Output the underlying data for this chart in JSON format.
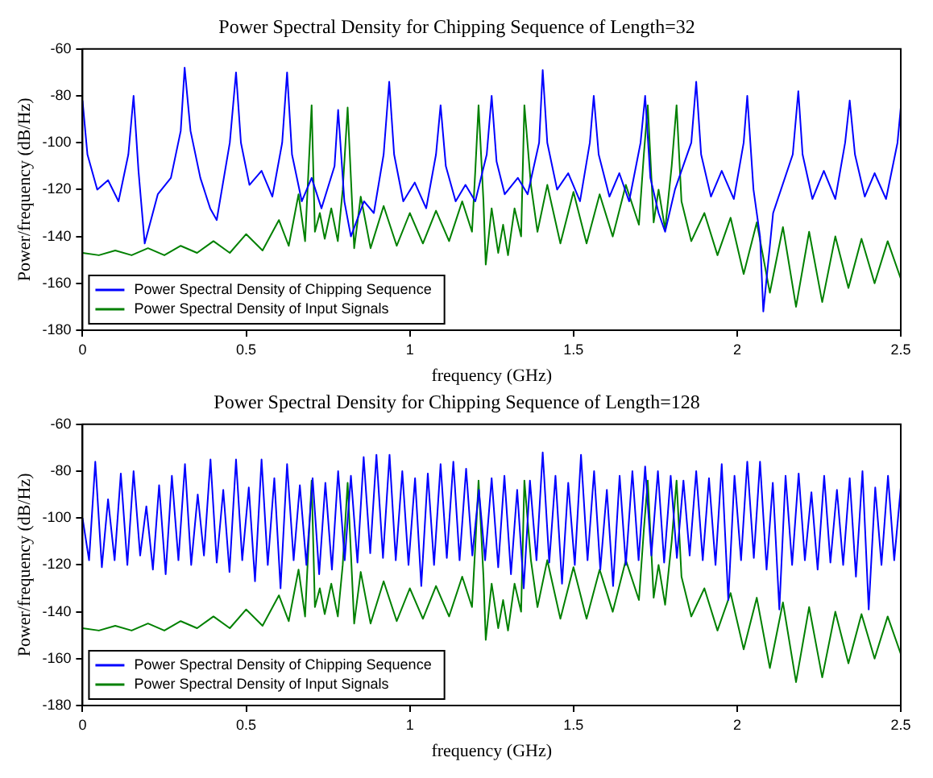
{
  "chart_data": [
    {
      "type": "line",
      "title": "Power Spectral Density for Chipping Sequence of Length=32",
      "xlabel": "frequency (GHz)",
      "ylabel": "Power/frequency (dB/Hz)",
      "xlim": [
        0,
        2.5
      ],
      "xticks": [
        0,
        0.5,
        1,
        1.5,
        2,
        2.5
      ],
      "ylim": [
        -180,
        -60
      ],
      "yticks": [
        -180,
        -160,
        -140,
        -120,
        -100,
        -80,
        -60
      ],
      "grid": false,
      "legend": "bottom left",
      "marker": "none",
      "line_style": "solid",
      "series": [
        {
          "name": "Power Spectral Density of Chipping Sequence",
          "color": "#0000ff",
          "x": [
            0,
            0.015,
            0.045,
            0.078,
            0.11,
            0.14,
            0.156,
            0.171,
            0.19,
            0.23,
            0.27,
            0.3,
            0.312,
            0.33,
            0.36,
            0.39,
            0.41,
            0.45,
            0.469,
            0.484,
            0.51,
            0.547,
            0.58,
            0.61,
            0.625,
            0.64,
            0.67,
            0.7,
            0.73,
            0.77,
            0.781,
            0.8,
            0.82,
            0.86,
            0.89,
            0.92,
            0.937,
            0.952,
            0.98,
            1.015,
            1.05,
            1.08,
            1.094,
            1.11,
            1.14,
            1.17,
            1.2,
            1.235,
            1.25,
            1.265,
            1.29,
            1.33,
            1.36,
            1.395,
            1.406,
            1.42,
            1.45,
            1.484,
            1.52,
            1.55,
            1.562,
            1.577,
            1.61,
            1.64,
            1.67,
            1.705,
            1.719,
            1.735,
            1.76,
            1.78,
            1.81,
            1.86,
            1.875,
            1.89,
            1.92,
            1.953,
            1.99,
            2.02,
            2.031,
            2.05,
            2.07,
            2.08,
            2.11,
            2.17,
            2.187,
            2.2,
            2.23,
            2.265,
            2.3,
            2.33,
            2.344,
            2.36,
            2.39,
            2.42,
            2.455,
            2.49,
            2.5
          ],
          "values": [
            -82,
            -105,
            -120,
            -116,
            -125,
            -105,
            -80,
            -112,
            -143,
            -122,
            -115,
            -95,
            -68,
            -95,
            -115,
            -128,
            -133,
            -100,
            -70,
            -100,
            -118,
            -112,
            -123,
            -100,
            -70,
            -105,
            -125,
            -115,
            -128,
            -110,
            -86,
            -125,
            -140,
            -125,
            -130,
            -105,
            -74,
            -105,
            -125,
            -117,
            -128,
            -105,
            -84,
            -110,
            -125,
            -118,
            -125,
            -105,
            -80,
            -108,
            -122,
            -115,
            -122,
            -100,
            -69,
            -100,
            -120,
            -113,
            -125,
            -100,
            -80,
            -105,
            -123,
            -113,
            -125,
            -100,
            -80,
            -115,
            -130,
            -138,
            -120,
            -100,
            -74,
            -105,
            -123,
            -112,
            -124,
            -100,
            -80,
            -120,
            -140,
            -172,
            -130,
            -105,
            -78,
            -105,
            -124,
            -112,
            -124,
            -100,
            -82,
            -105,
            -123,
            -113,
            -124,
            -100,
            -85
          ]
        },
        {
          "name": "Power Spectral Density of Input Signals",
          "color": "#008000",
          "x": [
            0,
            0.05,
            0.1,
            0.15,
            0.2,
            0.25,
            0.3,
            0.35,
            0.4,
            0.45,
            0.5,
            0.55,
            0.6,
            0.63,
            0.66,
            0.68,
            0.7,
            0.71,
            0.725,
            0.74,
            0.76,
            0.78,
            0.795,
            0.81,
            0.83,
            0.85,
            0.88,
            0.92,
            0.96,
            1,
            1.04,
            1.08,
            1.12,
            1.16,
            1.19,
            1.2,
            1.21,
            1.225,
            1.232,
            1.25,
            1.27,
            1.285,
            1.3,
            1.32,
            1.34,
            1.35,
            1.37,
            1.39,
            1.42,
            1.46,
            1.5,
            1.54,
            1.58,
            1.62,
            1.66,
            1.7,
            1.715,
            1.727,
            1.745,
            1.76,
            1.78,
            1.8,
            1.815,
            1.83,
            1.86,
            1.9,
            1.94,
            1.98,
            2.02,
            2.06,
            2.1,
            2.14,
            2.18,
            2.22,
            2.26,
            2.3,
            2.34,
            2.38,
            2.42,
            2.46,
            2.5
          ],
          "values": [
            -147,
            -148,
            -146,
            -148,
            -145,
            -148,
            -144,
            -147,
            -142,
            -147,
            -139,
            -146,
            -133,
            -144,
            -122,
            -142,
            -84,
            -138,
            -130,
            -141,
            -128,
            -142,
            -120,
            -85,
            -145,
            -123,
            -145,
            -127,
            -144,
            -130,
            -143,
            -129,
            -142,
            -125,
            -138,
            -112,
            -84,
            -125,
            -152,
            -128,
            -147,
            -135,
            -148,
            -128,
            -140,
            -84,
            -118,
            -138,
            -118,
            -143,
            -121,
            -143,
            -122,
            -140,
            -118,
            -135,
            -105,
            -84,
            -134,
            -120,
            -137,
            -110,
            -84,
            -125,
            -142,
            -130,
            -148,
            -132,
            -156,
            -134,
            -164,
            -136,
            -170,
            -138,
            -168,
            -140,
            -162,
            -141,
            -160,
            -142,
            -158
          ]
        }
      ]
    },
    {
      "type": "line",
      "title": "Power Spectral Density for Chipping Sequence of Length=128",
      "xlabel": "frequency (GHz)",
      "ylabel": "Power/frequency (dB/Hz)",
      "xlim": [
        0,
        2.5
      ],
      "xticks": [
        0,
        0.5,
        1,
        1.5,
        2,
        2.5
      ],
      "ylim": [
        -180,
        -60
      ],
      "yticks": [
        -180,
        -160,
        -140,
        -120,
        -100,
        -80,
        -60
      ],
      "grid": false,
      "legend": "bottom left",
      "marker": "none",
      "line_style": "solid",
      "series": [
        {
          "name": "Power Spectral Density of Chipping Sequence",
          "color": "#0000ff",
          "x": [
            0,
            0.02,
            0.039,
            0.059,
            0.078,
            0.098,
            0.117,
            0.137,
            0.156,
            0.176,
            0.195,
            0.215,
            0.234,
            0.254,
            0.273,
            0.293,
            0.313,
            0.332,
            0.352,
            0.371,
            0.391,
            0.41,
            0.43,
            0.449,
            0.469,
            0.488,
            0.508,
            0.527,
            0.547,
            0.566,
            0.586,
            0.605,
            0.625,
            0.645,
            0.664,
            0.684,
            0.703,
            0.723,
            0.742,
            0.762,
            0.781,
            0.801,
            0.82,
            0.84,
            0.859,
            0.879,
            0.898,
            0.918,
            0.938,
            0.957,
            0.977,
            0.996,
            1.016,
            1.035,
            1.055,
            1.074,
            1.094,
            1.113,
            1.133,
            1.152,
            1.172,
            1.191,
            1.211,
            1.23,
            1.25,
            1.27,
            1.289,
            1.309,
            1.328,
            1.348,
            1.367,
            1.387,
            1.406,
            1.426,
            1.445,
            1.465,
            1.484,
            1.504,
            1.523,
            1.543,
            1.563,
            1.582,
            1.602,
            1.621,
            1.641,
            1.66,
            1.68,
            1.699,
            1.719,
            1.738,
            1.758,
            1.777,
            1.797,
            1.816,
            1.836,
            1.855,
            1.875,
            1.895,
            1.914,
            1.934,
            1.953,
            1.973,
            1.992,
            2.012,
            2.031,
            2.051,
            2.07,
            2.09,
            2.109,
            2.129,
            2.148,
            2.168,
            2.188,
            2.207,
            2.227,
            2.246,
            2.266,
            2.285,
            2.305,
            2.324,
            2.344,
            2.363,
            2.383,
            2.402,
            2.422,
            2.441,
            2.461,
            2.48,
            2.5
          ],
          "values": [
            -100,
            -118,
            -76,
            -121,
            -92,
            -118,
            -81,
            -120,
            -80,
            -116,
            -95,
            -122,
            -86,
            -124,
            -82,
            -118,
            -77,
            -120,
            -90,
            -116,
            -75,
            -119,
            -88,
            -123,
            -75,
            -118,
            -87,
            -127,
            -75,
            -120,
            -83,
            -130,
            -77,
            -118,
            -86,
            -120,
            -83,
            -124,
            -85,
            -122,
            -80,
            -118,
            -82,
            -119,
            -74,
            -115,
            -73,
            -117,
            -73,
            -118,
            -80,
            -120,
            -83,
            -129,
            -81,
            -120,
            -77,
            -117,
            -76,
            -118,
            -79,
            -116,
            -88,
            -118,
            -83,
            -121,
            -82,
            -124,
            -88,
            -130,
            -84,
            -118,
            -72,
            -119,
            -82,
            -128,
            -85,
            -120,
            -73,
            -118,
            -80,
            -122,
            -88,
            -129,
            -82,
            -120,
            -80,
            -118,
            -78,
            -116,
            -80,
            -119,
            -82,
            -117,
            -84,
            -116,
            -80,
            -118,
            -83,
            -120,
            -77,
            -135,
            -82,
            -118,
            -76,
            -117,
            -76,
            -122,
            -85,
            -139,
            -82,
            -120,
            -81,
            -118,
            -89,
            -122,
            -82,
            -119,
            -88,
            -120,
            -83,
            -125,
            -80,
            -139,
            -87,
            -120,
            -82,
            -118,
            -87
          ]
        },
        {
          "name": "Power Spectral Density of Input Signals",
          "color": "#008000",
          "x": [
            0,
            0.05,
            0.1,
            0.15,
            0.2,
            0.25,
            0.3,
            0.35,
            0.4,
            0.45,
            0.5,
            0.55,
            0.6,
            0.63,
            0.66,
            0.68,
            0.7,
            0.71,
            0.725,
            0.74,
            0.76,
            0.78,
            0.795,
            0.81,
            0.83,
            0.85,
            0.88,
            0.92,
            0.96,
            1,
            1.04,
            1.08,
            1.12,
            1.16,
            1.19,
            1.2,
            1.21,
            1.225,
            1.232,
            1.25,
            1.27,
            1.285,
            1.3,
            1.32,
            1.34,
            1.35,
            1.37,
            1.39,
            1.42,
            1.46,
            1.5,
            1.54,
            1.58,
            1.62,
            1.66,
            1.7,
            1.715,
            1.727,
            1.745,
            1.76,
            1.78,
            1.8,
            1.815,
            1.83,
            1.86,
            1.9,
            1.94,
            1.98,
            2.02,
            2.06,
            2.1,
            2.14,
            2.18,
            2.22,
            2.26,
            2.3,
            2.34,
            2.38,
            2.42,
            2.46,
            2.5
          ],
          "values": [
            -147,
            -148,
            -146,
            -148,
            -145,
            -148,
            -144,
            -147,
            -142,
            -147,
            -139,
            -146,
            -133,
            -144,
            -122,
            -142,
            -84,
            -138,
            -130,
            -141,
            -128,
            -142,
            -120,
            -85,
            -145,
            -123,
            -145,
            -127,
            -144,
            -130,
            -143,
            -129,
            -142,
            -125,
            -138,
            -112,
            -84,
            -125,
            -152,
            -128,
            -147,
            -135,
            -148,
            -128,
            -140,
            -84,
            -118,
            -138,
            -118,
            -143,
            -121,
            -143,
            -122,
            -140,
            -118,
            -135,
            -105,
            -84,
            -134,
            -120,
            -137,
            -110,
            -84,
            -125,
            -142,
            -130,
            -148,
            -132,
            -156,
            -134,
            -164,
            -136,
            -170,
            -138,
            -168,
            -140,
            -162,
            -141,
            -160,
            -142,
            -158
          ]
        }
      ]
    }
  ]
}
